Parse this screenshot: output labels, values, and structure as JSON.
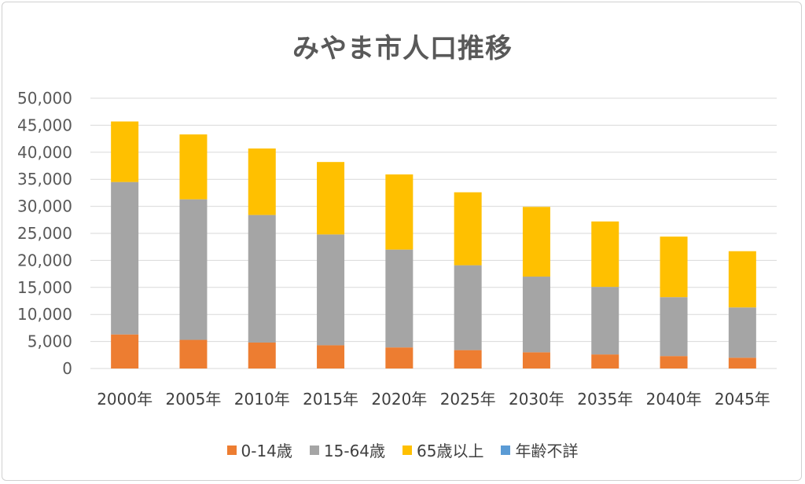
{
  "chart_data": {
    "type": "bar",
    "stacked": true,
    "title": "みやま市人口推移",
    "categories": [
      "2000年",
      "2005年",
      "2010年",
      "2015年",
      "2020年",
      "2025年",
      "2030年",
      "2035年",
      "2040年",
      "2045年"
    ],
    "y_ticks": [
      "0",
      "5,000",
      "10,000",
      "15,000",
      "20,000",
      "25,000",
      "30,000",
      "35,000",
      "40,000",
      "45,000",
      "50,000"
    ],
    "ylim": [
      0,
      50000
    ],
    "grid": true,
    "legend_position": "bottom",
    "series": [
      {
        "name": "0-14歳",
        "color": "#ED7D31",
        "values": [
          6300,
          5300,
          4800,
          4300,
          3900,
          3400,
          3000,
          2600,
          2300,
          2000
        ]
      },
      {
        "name": "15-64歳",
        "color": "#A5A5A5",
        "values": [
          28200,
          26000,
          23600,
          20500,
          18100,
          15700,
          14000,
          12500,
          10900,
          9300
        ]
      },
      {
        "name": "65歳以上",
        "color": "#FFC000",
        "values": [
          11200,
          12000,
          12300,
          13400,
          13900,
          13500,
          12900,
          12100,
          11200,
          10400
        ]
      },
      {
        "name": "年齢不詳",
        "color": "#5B9BD5",
        "values": [
          0,
          0,
          0,
          0,
          0,
          0,
          0,
          0,
          0,
          0
        ]
      }
    ]
  }
}
